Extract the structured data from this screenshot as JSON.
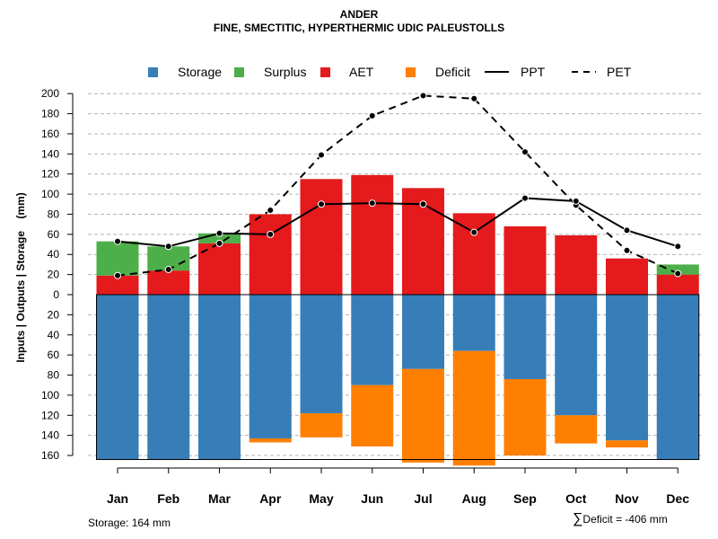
{
  "chart_data": {
    "type": "bar",
    "title": "ANDER",
    "subtitle": "FINE, SMECTITIC, HYPERTHERMIC UDIC PALEUSTOLLS",
    "ylabel": "Inputs | Outputs | Storage    (mm)",
    "ylim": [
      -170,
      200
    ],
    "grid": true,
    "legend_position": "top",
    "categories": [
      "Jan",
      "Feb",
      "Mar",
      "Apr",
      "May",
      "Jun",
      "Jul",
      "Aug",
      "Sep",
      "Oct",
      "Nov",
      "Dec"
    ],
    "y_ticks": [
      {
        "value": 200,
        "label": "200"
      },
      {
        "value": 180,
        "label": "180"
      },
      {
        "value": 160,
        "label": "160"
      },
      {
        "value": 140,
        "label": "140"
      },
      {
        "value": 120,
        "label": "120"
      },
      {
        "value": 100,
        "label": "100"
      },
      {
        "value": 80,
        "label": "80"
      },
      {
        "value": 60,
        "label": "60"
      },
      {
        "value": 40,
        "label": "40"
      },
      {
        "value": 20,
        "label": "20"
      },
      {
        "value": 0,
        "label": "0"
      },
      {
        "value": -20,
        "label": "20"
      },
      {
        "value": -40,
        "label": "40"
      },
      {
        "value": -60,
        "label": "60"
      },
      {
        "value": -80,
        "label": "80"
      },
      {
        "value": -100,
        "label": "100"
      },
      {
        "value": -120,
        "label": "120"
      },
      {
        "value": -140,
        "label": "140"
      },
      {
        "value": -160,
        "label": "160"
      }
    ],
    "legend": [
      {
        "key": "storage",
        "label": "Storage",
        "type": "box",
        "color": "#377eb8"
      },
      {
        "key": "surplus",
        "label": "Surplus",
        "type": "box",
        "color": "#4daf4a"
      },
      {
        "key": "aet",
        "label": "AET",
        "type": "box",
        "color": "#e41a1c"
      },
      {
        "key": "deficit",
        "label": "Deficit",
        "type": "box",
        "color": "#ff7f00"
      },
      {
        "key": "ppt",
        "label": "PPT",
        "type": "solid",
        "color": "#000000"
      },
      {
        "key": "pet",
        "label": "PET",
        "type": "dashed",
        "color": "#000000"
      }
    ],
    "series": [
      {
        "name": "AET",
        "color": "#e41a1c",
        "values": [
          19,
          24,
          51,
          80,
          115,
          119,
          106,
          81,
          68,
          59,
          36,
          20
        ]
      },
      {
        "name": "Surplus",
        "color": "#4daf4a",
        "values": [
          34,
          24,
          10,
          0,
          0,
          0,
          0,
          0,
          0,
          0,
          0,
          10
        ]
      },
      {
        "name": "Storage",
        "color": "#377eb8",
        "values": [
          164,
          164,
          164,
          143,
          118,
          90,
          74,
          56,
          84,
          120,
          145,
          164
        ]
      },
      {
        "name": "Deficit",
        "color": "#ff7f00",
        "values": [
          0,
          0,
          0,
          4,
          24,
          61,
          93,
          114,
          76,
          28,
          7,
          0
        ]
      },
      {
        "name": "PPT",
        "color": "#000000",
        "values": [
          53,
          48,
          61,
          60,
          90,
          91,
          90,
          62,
          96,
          93,
          64,
          48
        ]
      },
      {
        "name": "PET",
        "color": "#000000",
        "values": [
          19,
          25,
          51,
          84,
          139,
          178,
          198,
          195,
          142,
          89,
          44,
          21
        ]
      }
    ]
  },
  "footer": {
    "storage": "Storage: 164 mm",
    "deficit_symbol": "∑",
    "deficit": "Deficit = -406 mm"
  }
}
